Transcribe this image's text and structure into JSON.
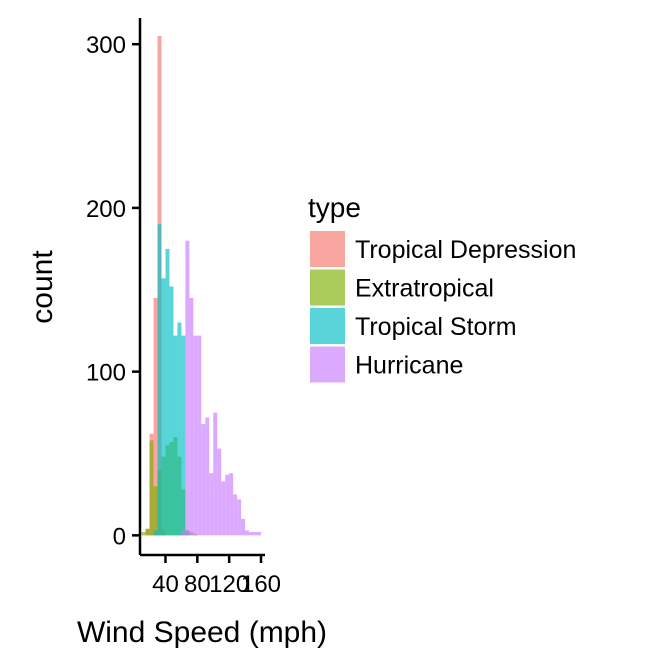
{
  "chart_data": {
    "type": "bar",
    "subtype": "overlaid-histogram",
    "title": "",
    "xlabel": "Wind Speed (mph)",
    "ylabel": "count",
    "xlim": [
      8,
      165
    ],
    "ylim": [
      -12,
      316
    ],
    "x_ticks": [
      "40",
      "80",
      "120",
      "160"
    ],
    "x_tick_values": [
      40,
      80,
      120,
      160
    ],
    "y_ticks": [
      "0",
      "100",
      "200",
      "300"
    ],
    "y_tick_values": [
      0,
      100,
      200,
      300
    ],
    "grid": false,
    "bin_width": 5,
    "legend": {
      "title": "type",
      "position": "right"
    },
    "series": [
      {
        "name": "Tropical Depression",
        "color": "#F8766D",
        "bins": [
          [
            15,
            4
          ],
          [
            20,
            62
          ],
          [
            25,
            145
          ],
          [
            30,
            305
          ],
          [
            35,
            3
          ]
        ]
      },
      {
        "name": "Extratropical",
        "color": "#7CAE00",
        "bins": [
          [
            10,
            2
          ],
          [
            15,
            4
          ],
          [
            20,
            58
          ],
          [
            25,
            30
          ],
          [
            30,
            40
          ],
          [
            35,
            48
          ],
          [
            40,
            55
          ],
          [
            45,
            57
          ],
          [
            50,
            60
          ],
          [
            55,
            48
          ],
          [
            60,
            28
          ],
          [
            65,
            3
          ],
          [
            70,
            2
          ],
          [
            75,
            1
          ]
        ]
      },
      {
        "name": "Tropical Storm",
        "color": "#00BFC4",
        "bins": [
          [
            25,
            3
          ],
          [
            30,
            190
          ],
          [
            35,
            157
          ],
          [
            40,
            175
          ],
          [
            45,
            152
          ],
          [
            50,
            122
          ],
          [
            55,
            130
          ],
          [
            60,
            122
          ],
          [
            65,
            3
          ]
        ]
      },
      {
        "name": "Hurricane",
        "color": "#C77CFF",
        "bins": [
          [
            60,
            3
          ],
          [
            65,
            180
          ],
          [
            70,
            145
          ],
          [
            75,
            122
          ],
          [
            80,
            122
          ],
          [
            85,
            68
          ],
          [
            90,
            72
          ],
          [
            95,
            38
          ],
          [
            100,
            75
          ],
          [
            105,
            53
          ],
          [
            110,
            33
          ],
          [
            115,
            37
          ],
          [
            120,
            38
          ],
          [
            125,
            25
          ],
          [
            130,
            22
          ],
          [
            135,
            10
          ],
          [
            140,
            3
          ],
          [
            145,
            2
          ],
          [
            150,
            2
          ],
          [
            155,
            2
          ]
        ]
      }
    ]
  }
}
